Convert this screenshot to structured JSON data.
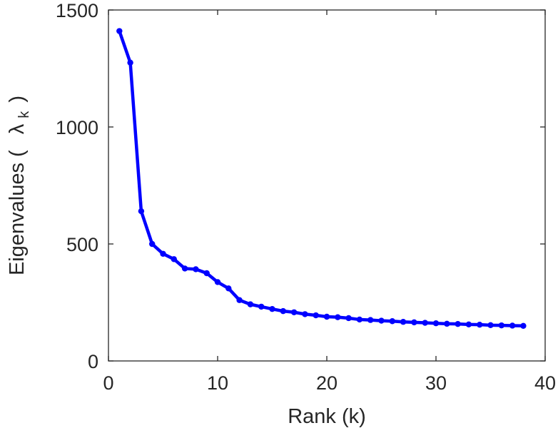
{
  "chart_data": {
    "type": "line",
    "title": "",
    "xlabel": "Rank (k)",
    "ylabel_prefix": "Eigenvalues (",
    "ylabel_symbol": "λ",
    "ylabel_subscript": "k",
    "ylabel_suffix": ")",
    "xlim": [
      0,
      40
    ],
    "ylim": [
      0,
      1500
    ],
    "xticks": [
      0,
      10,
      20,
      30,
      40
    ],
    "yticks": [
      0,
      500,
      1000,
      1500
    ],
    "grid": false,
    "color": "#0000ff",
    "series": [
      {
        "x": [
          1,
          2,
          3,
          4,
          5,
          6,
          7,
          8,
          9,
          10,
          11,
          12,
          13,
          14,
          15,
          16,
          17,
          18,
          19,
          20,
          21,
          22,
          23,
          24,
          25,
          26,
          27,
          28,
          29,
          30,
          31,
          32,
          33,
          34,
          35,
          36,
          37,
          38
        ],
        "y": [
          1410,
          1275,
          640,
          500,
          458,
          435,
          395,
          392,
          375,
          337,
          310,
          260,
          242,
          232,
          222,
          213,
          208,
          200,
          195,
          189,
          187,
          183,
          177,
          175,
          172,
          170,
          167,
          165,
          163,
          161,
          159,
          158,
          156,
          155,
          153,
          152,
          151,
          150
        ]
      }
    ]
  }
}
